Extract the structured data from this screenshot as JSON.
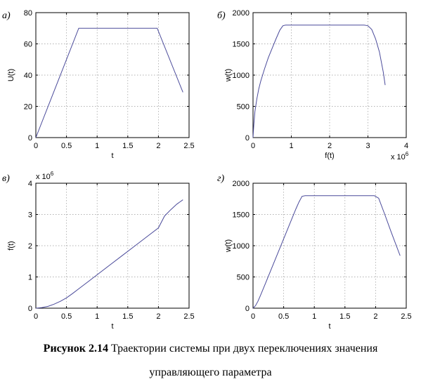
{
  "colors": {
    "line": "#4a4a9a",
    "axis": "#000000",
    "grid": "#999999"
  },
  "chart_data": [
    {
      "type": "line",
      "panel_label": "а)",
      "xlabel": "t",
      "ylabel": "U(t)",
      "xlim": [
        0,
        2.5
      ],
      "ylim": [
        0,
        80
      ],
      "xticks": [
        0,
        0.5,
        1,
        1.5,
        2,
        2.5
      ],
      "xtick_labels": [
        "0",
        "0.5",
        "1",
        "1.5",
        "2",
        "2.5"
      ],
      "yticks": [
        0,
        20,
        40,
        60,
        80
      ],
      "ytick_labels": [
        "0",
        "20",
        "40",
        "60",
        "80"
      ],
      "grid": true,
      "x": [
        0,
        0.7,
        1.98,
        2.4
      ],
      "y": [
        0,
        70,
        70,
        29
      ]
    },
    {
      "type": "line",
      "panel_label": "б)",
      "xlabel": "f(t)",
      "ylabel": "w(t)",
      "x_exponent_label": "x 10",
      "x_exponent_power": "6",
      "xlim": [
        0,
        4
      ],
      "ylim": [
        0,
        2000
      ],
      "xticks": [
        0,
        1,
        2,
        3,
        4
      ],
      "xtick_labels": [
        "0",
        "1",
        "2",
        "3",
        "4"
      ],
      "yticks": [
        0,
        500,
        1000,
        1500,
        2000
      ],
      "ytick_labels": [
        "0",
        "500",
        "1000",
        "1500",
        "2000"
      ],
      "grid": true,
      "x": [
        0,
        0.02,
        0.05,
        0.1,
        0.15,
        0.2,
        0.3,
        0.4,
        0.5,
        0.6,
        0.7,
        0.78,
        0.85,
        1.0,
        2.0,
        2.9,
        3.0,
        3.1,
        3.2,
        3.3,
        3.4,
        3.45
      ],
      "y": [
        0,
        200,
        420,
        620,
        780,
        900,
        1100,
        1280,
        1430,
        1580,
        1720,
        1790,
        1800,
        1800,
        1800,
        1800,
        1790,
        1730,
        1580,
        1370,
        1050,
        840
      ]
    },
    {
      "type": "line",
      "panel_label": "в)",
      "xlabel": "t",
      "ylabel": "f(t)",
      "y_exponent_label": "x 10",
      "y_exponent_power": "6",
      "xlim": [
        0,
        2.5
      ],
      "ylim": [
        0,
        4
      ],
      "xticks": [
        0,
        0.5,
        1,
        1.5,
        2,
        2.5
      ],
      "xtick_labels": [
        "0",
        "0.5",
        "1",
        "1.5",
        "2",
        "2.5"
      ],
      "yticks": [
        0,
        1,
        2,
        3,
        4
      ],
      "ytick_labels": [
        "0",
        "1",
        "2",
        "3",
        "4"
      ],
      "grid": true,
      "x": [
        0,
        0.1,
        0.2,
        0.3,
        0.4,
        0.5,
        0.6,
        0.7,
        0.8,
        1.0,
        1.2,
        1.4,
        1.6,
        1.8,
        2.0,
        2.1,
        2.2,
        2.3,
        2.4
      ],
      "y": [
        0,
        0.02,
        0.06,
        0.13,
        0.22,
        0.33,
        0.47,
        0.62,
        0.77,
        1.07,
        1.37,
        1.67,
        1.97,
        2.27,
        2.57,
        2.95,
        3.15,
        3.33,
        3.47
      ]
    },
    {
      "type": "line",
      "panel_label": "г)",
      "xlabel": "t",
      "ylabel": "w(t)",
      "xlim": [
        0,
        2.5
      ],
      "ylim": [
        0,
        2000
      ],
      "xticks": [
        0,
        0.5,
        1,
        1.5,
        2,
        2.5
      ],
      "xtick_labels": [
        "0",
        "0.5",
        "1",
        "1.5",
        "2",
        "2.5"
      ],
      "yticks": [
        0,
        500,
        1000,
        1500,
        2000
      ],
      "ytick_labels": [
        "0",
        "500",
        "1000",
        "1500",
        "2000"
      ],
      "grid": true,
      "x": [
        0,
        0.04,
        0.08,
        0.12,
        0.2,
        0.3,
        0.4,
        0.5,
        0.6,
        0.7,
        0.75,
        0.8,
        0.85,
        1.0,
        1.5,
        1.98,
        2.05,
        2.15,
        2.25,
        2.4
      ],
      "y": [
        0,
        40,
        110,
        200,
        390,
        630,
        870,
        1110,
        1350,
        1590,
        1700,
        1790,
        1800,
        1800,
        1800,
        1800,
        1760,
        1500,
        1230,
        840
      ]
    }
  ],
  "caption": {
    "label": "Рисунок 2.14",
    "text": " Траектории системы при двух переключениях значения",
    "line2": "управляющего параметра"
  }
}
